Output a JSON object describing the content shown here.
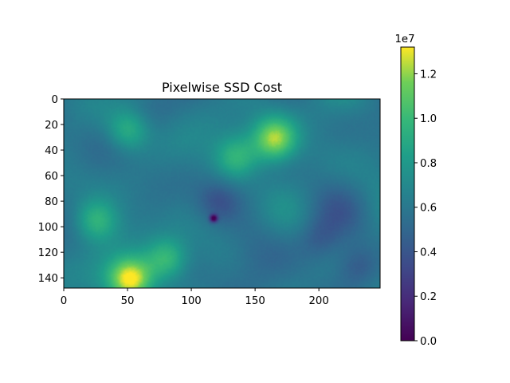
{
  "chart_data": {
    "type": "heatmap",
    "title": "Pixelwise SSD Cost",
    "xlabel": "",
    "ylabel": "",
    "xlim": [
      0,
      248
    ],
    "ylim": [
      148,
      0
    ],
    "xticks": [
      "0",
      "50",
      "100",
      "150",
      "200"
    ],
    "yticks": [
      "0",
      "20",
      "40",
      "60",
      "80",
      "100",
      "120",
      "140"
    ],
    "colorbar": {
      "range": [
        0,
        13200000
      ],
      "ticks": [
        "0.0",
        "0.2",
        "0.4",
        "0.6",
        "0.8",
        "1.0",
        "1.2"
      ],
      "tick_values": [
        0,
        2000000,
        4000000,
        6000000,
        8000000,
        10000000,
        12000000
      ],
      "offset_label": "1e7",
      "colormap": "viridis"
    },
    "base_value": 6000000,
    "features": [
      {
        "x": 165,
        "y": 31,
        "value": 12000000,
        "desc": "bright blob"
      },
      {
        "x": 52,
        "y": 141,
        "value": 13000000,
        "desc": "bright blob"
      },
      {
        "x": 50,
        "y": 24,
        "value": 10000000,
        "desc": "bright streak"
      },
      {
        "x": 25,
        "y": 95,
        "value": 10000000,
        "desc": "bright region"
      },
      {
        "x": 80,
        "y": 125,
        "value": 10500000,
        "desc": "bright region"
      },
      {
        "x": 135,
        "y": 45,
        "value": 9500000,
        "desc": "bright band"
      },
      {
        "x": 120,
        "y": 80,
        "value": 4000000,
        "desc": "dark region"
      },
      {
        "x": 230,
        "y": 130,
        "value": 4000000,
        "desc": "dark region"
      },
      {
        "x": 200,
        "y": 110,
        "value": 4300000,
        "desc": "dark region"
      },
      {
        "x": 117,
        "y": 93,
        "value": 0,
        "desc": "minimum point"
      }
    ]
  }
}
